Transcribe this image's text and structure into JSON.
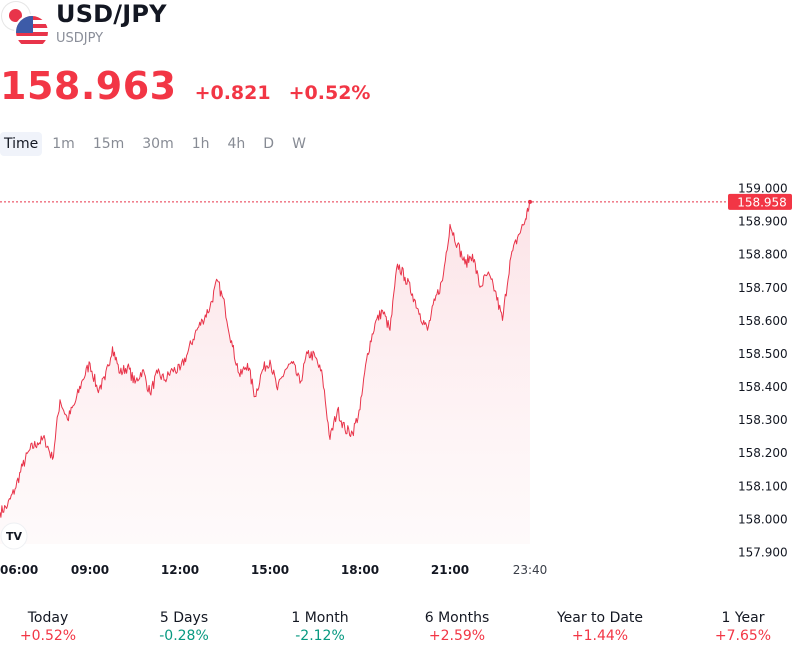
{
  "header": {
    "symbol_title": "USD/JPY",
    "symbol_code": "USDJPY",
    "price": "158.963",
    "change_abs": "+0.821",
    "change_pct": "+0.52%"
  },
  "timeframe_tabs": [
    "Time",
    "1m",
    "15m",
    "30m",
    "1h",
    "4h",
    "D",
    "W"
  ],
  "active_tab": "Time",
  "colors": {
    "up": "#f23645",
    "down": "#089981",
    "line": "#e8344a",
    "fill": "#fde8eb"
  },
  "chart_data": {
    "type": "area",
    "title": "",
    "xlabel": "",
    "ylabel": "",
    "x_ticks": [
      "06:00",
      "09:00",
      "12:00",
      "15:00",
      "18:00",
      "21:00",
      "23:40"
    ],
    "x_tick_hours": [
      6,
      9,
      12,
      15,
      18,
      21,
      23.667
    ],
    "x_range_hours": [
      6,
      23.667
    ],
    "y_ticks": [
      "159.000",
      "158.900",
      "158.800",
      "158.700",
      "158.600",
      "158.500",
      "158.400",
      "158.300",
      "158.200",
      "158.100",
      "158.000",
      "157.900"
    ],
    "ylim": [
      157.9,
      159.0
    ],
    "last_price_label": "158.958",
    "last_price": 158.958,
    "series": [
      {
        "x_hours": [
          6.0,
          6.25,
          6.5,
          6.75,
          7.0,
          7.25,
          7.5,
          7.75,
          8.0,
          8.25,
          8.5,
          8.75,
          9.0,
          9.25,
          9.5,
          9.75,
          10.0,
          10.25,
          10.5,
          10.75,
          11.0,
          11.25,
          11.5,
          11.75,
          12.0,
          12.25,
          12.5,
          12.75,
          13.0,
          13.25,
          13.5,
          13.75,
          14.0,
          14.25,
          14.5,
          14.75,
          15.0,
          15.25,
          15.5,
          15.75,
          16.0,
          16.25,
          16.5,
          16.75,
          17.0,
          17.25,
          17.5,
          17.75,
          18.0,
          18.25,
          18.5,
          18.75,
          19.0,
          19.25,
          19.5,
          19.75,
          20.0,
          20.25,
          20.5,
          20.75,
          21.0,
          21.25,
          21.5,
          21.75,
          22.0,
          22.25,
          22.5,
          22.75,
          23.0,
          23.25,
          23.5,
          23.667
        ],
        "values": [
          158.02,
          158.04,
          158.09,
          158.16,
          158.21,
          158.23,
          158.24,
          158.18,
          158.36,
          158.3,
          158.35,
          158.42,
          158.47,
          158.39,
          158.42,
          158.52,
          158.44,
          158.46,
          158.41,
          158.45,
          158.38,
          158.44,
          158.42,
          158.45,
          158.45,
          158.5,
          158.56,
          158.6,
          158.64,
          158.72,
          158.64,
          158.52,
          158.43,
          158.47,
          158.37,
          158.45,
          158.48,
          158.39,
          158.45,
          158.47,
          158.41,
          158.5,
          158.49,
          158.43,
          158.24,
          158.33,
          158.27,
          158.26,
          158.33,
          158.5,
          158.59,
          158.63,
          158.57,
          158.77,
          158.73,
          158.68,
          158.62,
          158.57,
          158.66,
          158.72,
          158.89,
          158.83,
          158.77,
          158.8,
          158.7,
          158.74,
          158.69,
          158.6,
          158.78,
          158.85,
          158.9,
          158.958
        ]
      }
    ],
    "grid": false,
    "legend": "none"
  },
  "performance": [
    {
      "label": "Today",
      "value": "+0.52%",
      "dir": "up"
    },
    {
      "label": "5 Days",
      "value": "-0.28%",
      "dir": "down"
    },
    {
      "label": "1 Month",
      "value": "-2.12%",
      "dir": "down"
    },
    {
      "label": "6 Months",
      "value": "+2.59%",
      "dir": "up"
    },
    {
      "label": "Year to Date",
      "value": "+1.44%",
      "dir": "up"
    },
    {
      "label": "1 Year",
      "value": "+7.65%",
      "dir": "up"
    }
  ]
}
